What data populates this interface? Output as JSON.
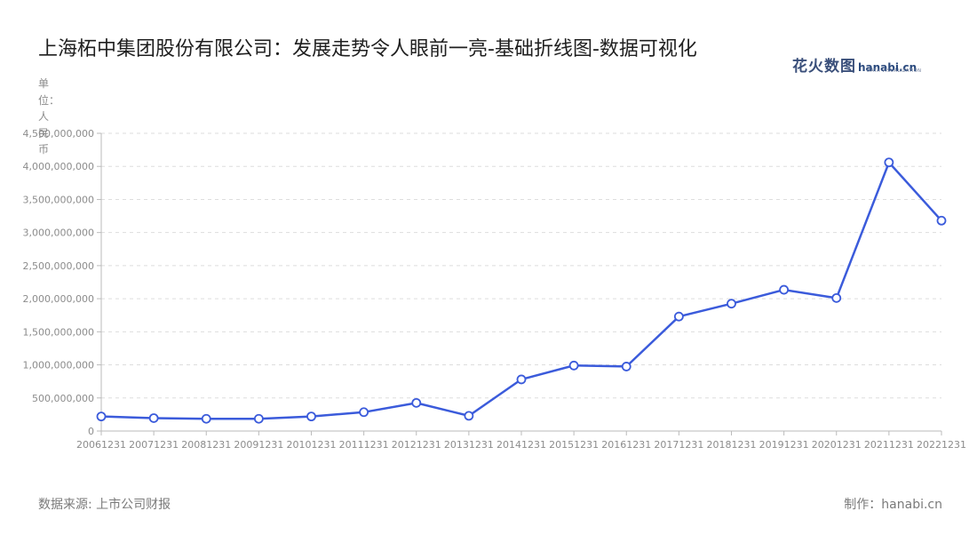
{
  "title": "上海柘中集团股份有限公司：发展走势令人眼前一亮-基础折线图-数据可视化",
  "brand": {
    "name_cn": "花火数图",
    "name_en": "hanabi.cn",
    "tagline": "DATA VISUALIZATION"
  },
  "unit_label": "单位：人民币",
  "footer": {
    "source": "数据来源: 上市公司财报",
    "maker": "制作：hanabi.cn"
  },
  "colors": {
    "line": "#3b5bdb",
    "grid": "#dddddd",
    "axis": "#bbbbbb",
    "tick_text": "#8c8c8c"
  },
  "chart_data": {
    "type": "line",
    "title": "上海柘中集团股份有限公司：发展走势令人眼前一亮-基础折线图-数据可视化",
    "ylabel": "单位：人民币",
    "xlabel": "",
    "ylim": [
      0,
      4500000000
    ],
    "y_ticks": [
      0,
      500000000,
      1000000000,
      1500000000,
      2000000000,
      2500000000,
      3000000000,
      3500000000,
      4000000000,
      4500000000
    ],
    "y_tick_labels": [
      "0",
      "500,000,000",
      "1,000,000,000",
      "1,500,000,000",
      "2,000,000,000",
      "2,500,000,000",
      "3,000,000,000",
      "3,500,000,000",
      "4,000,000,000",
      "4,500,000,000"
    ],
    "grid": true,
    "legend": "none",
    "categories": [
      "20061231",
      "20071231",
      "20081231",
      "20091231",
      "20101231",
      "20111231",
      "20121231",
      "20131231",
      "20141231",
      "20151231",
      "20161231",
      "20171231",
      "20181231",
      "20191231",
      "20201231",
      "20211231",
      "20221231"
    ],
    "series": [
      {
        "values": [
          220000000,
          195000000,
          185000000,
          185000000,
          220000000,
          285000000,
          425000000,
          230000000,
          780000000,
          990000000,
          975000000,
          1730000000,
          1925000000,
          2135000000,
          2010000000,
          4060000000,
          3180000000
        ]
      }
    ]
  }
}
